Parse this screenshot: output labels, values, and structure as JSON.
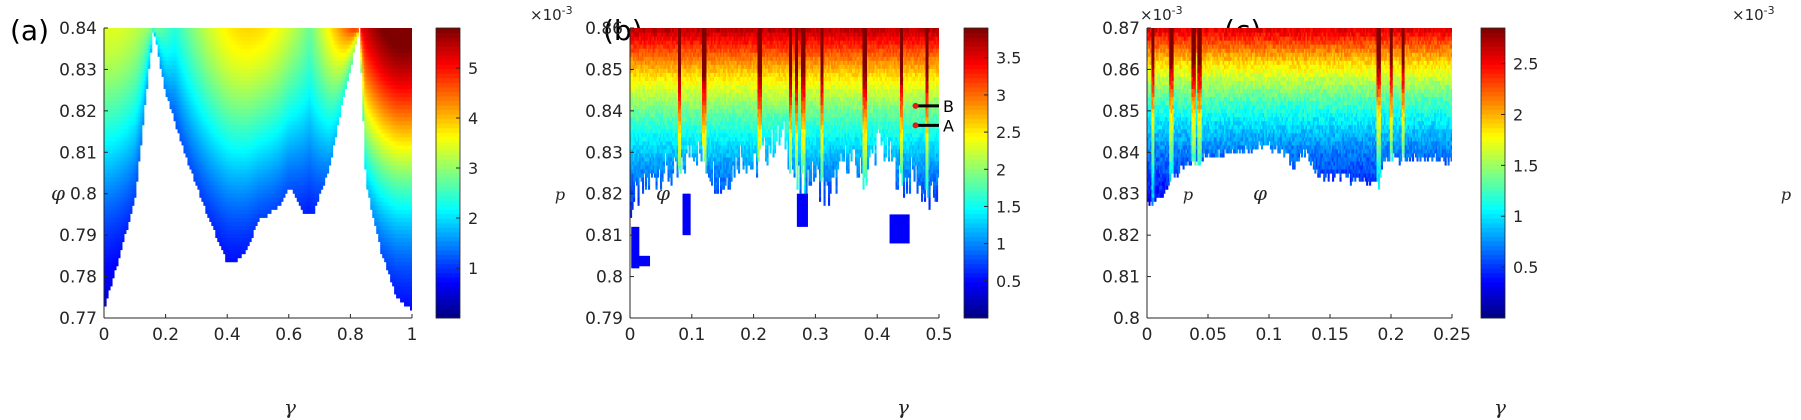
{
  "colors": {
    "axis": "#262626",
    "marker": "#e31a1c",
    "annotation_line": "#000000",
    "colormap": "jet"
  },
  "chart_data": [
    {
      "type": "heatmap",
      "panel_label": "(a)",
      "xlabel": "γ",
      "ylabel": "φ",
      "xlim": [
        0,
        1
      ],
      "ylim": [
        0.77,
        0.84
      ],
      "xticks": [
        "0",
        "0.2",
        "0.4",
        "0.6",
        "0.8",
        "1"
      ],
      "xtick_values": [
        0,
        0.2,
        0.4,
        0.6,
        0.8,
        1
      ],
      "yticks": [
        "0.77",
        "0.78",
        "0.79",
        "0.8",
        "0.81",
        "0.82",
        "0.83",
        "0.84"
      ],
      "ytick_values": [
        0.77,
        0.78,
        0.79,
        0.8,
        0.81,
        0.82,
        0.83,
        0.84
      ],
      "colorbar": {
        "label": "p",
        "multiplier": "×10",
        "exponent": "-3",
        "range": [
          0,
          5.8
        ],
        "ticks": [
          "1",
          "2",
          "3",
          "4",
          "5"
        ],
        "tick_values": [
          1,
          2,
          3,
          4,
          5
        ]
      },
      "boundary": [
        [
          0,
          0.7725
        ],
        [
          0.05,
          0.785
        ],
        [
          0.1,
          0.799
        ],
        [
          0.16,
          0.84
        ],
        [
          0.2,
          0.8245
        ],
        [
          0.27,
          0.808
        ],
        [
          0.33,
          0.796
        ],
        [
          0.38,
          0.787
        ],
        [
          0.4,
          0.7835
        ],
        [
          0.42,
          0.7835
        ],
        [
          0.46,
          0.786
        ],
        [
          0.5,
          0.7935
        ],
        [
          0.54,
          0.7955
        ],
        [
          0.57,
          0.7975
        ],
        [
          0.6,
          0.802
        ],
        [
          0.65,
          0.7955
        ],
        [
          0.68,
          0.7955
        ],
        [
          0.73,
          0.806
        ],
        [
          0.78,
          0.8245
        ],
        [
          0.83,
          0.84
        ],
        [
          0.85,
          0.8025
        ],
        [
          0.9,
          0.786
        ],
        [
          0.95,
          0.775
        ],
        [
          1,
          0.772
        ]
      ],
      "value_model": {
        "peaks": [
          [
            0.02,
            0.84,
            3.2
          ],
          [
            0.47,
            0.84,
            3.6
          ],
          [
            0.97,
            0.84,
            5.8
          ],
          [
            0.62,
            0.84,
            2.4
          ]
        ],
        "fringe": [
          0.1,
          0.85
        ]
      }
    },
    {
      "type": "heatmap",
      "panel_label": "(b)",
      "xlabel": "γ",
      "ylabel": "φ",
      "xlim": [
        0,
        0.5
      ],
      "ylim": [
        0.79,
        0.86
      ],
      "xticks": [
        "0",
        "0.1",
        "0.2",
        "0.3",
        "0.4",
        "0.5"
      ],
      "xtick_values": [
        0,
        0.1,
        0.2,
        0.3,
        0.4,
        0.5
      ],
      "yticks": [
        "0.79",
        "0.8",
        "0.81",
        "0.82",
        "0.83",
        "0.84",
        "0.85",
        "0.86"
      ],
      "ytick_values": [
        0.79,
        0.8,
        0.81,
        0.82,
        0.83,
        0.84,
        0.85,
        0.86
      ],
      "colorbar": {
        "label": "p",
        "multiplier": "×10",
        "exponent": "-3",
        "range": [
          0,
          3.9
        ],
        "ticks": [
          "0.5",
          "1",
          "1.5",
          "2",
          "2.5",
          "3",
          "3.5"
        ],
        "tick_values": [
          0.5,
          1,
          1.5,
          2,
          2.5,
          3,
          3.5
        ]
      },
      "points": [
        {
          "name": "A",
          "x": 0.462,
          "y": 0.8365
        },
        {
          "name": "B",
          "x": 0.462,
          "y": 0.8412
        }
      ],
      "boundary": [
        [
          0,
          0.817
        ],
        [
          0.02,
          0.821
        ],
        [
          0.05,
          0.826
        ],
        [
          0.08,
          0.824
        ],
        [
          0.1,
          0.832
        ],
        [
          0.12,
          0.828
        ],
        [
          0.15,
          0.822
        ],
        [
          0.18,
          0.83
        ],
        [
          0.2,
          0.826
        ],
        [
          0.22,
          0.831
        ],
        [
          0.25,
          0.834
        ],
        [
          0.27,
          0.822
        ],
        [
          0.3,
          0.825
        ],
        [
          0.32,
          0.819
        ],
        [
          0.35,
          0.829
        ],
        [
          0.38,
          0.824
        ],
        [
          0.4,
          0.833
        ],
        [
          0.42,
          0.829
        ],
        [
          0.44,
          0.822
        ],
        [
          0.46,
          0.825
        ],
        [
          0.48,
          0.818
        ],
        [
          0.5,
          0.821
        ]
      ],
      "islands": [
        [
          0.002,
          0.012,
          0.802,
          0.812
        ],
        [
          0.012,
          0.03,
          0.8025,
          0.805
        ],
        [
          0.085,
          0.095,
          0.81,
          0.82
        ],
        [
          0.27,
          0.285,
          0.812,
          0.82
        ],
        [
          0.42,
          0.45,
          0.808,
          0.815
        ]
      ],
      "value_model": {
        "base": 0.3,
        "scale": 3.4,
        "range": [
          0,
          3.9
        ],
        "streaks": [
          0.08,
          0.12,
          0.21,
          0.26,
          0.27,
          0.28,
          0.31,
          0.38,
          0.44,
          0.48
        ]
      }
    },
    {
      "type": "heatmap",
      "panel_label": "(c)",
      "xlabel": "γ",
      "ylabel": "φ",
      "xlim": [
        0,
        0.25
      ],
      "ylim": [
        0.8,
        0.87
      ],
      "xticks": [
        "0",
        "0.05",
        "0.1",
        "0.15",
        "0.2",
        "0.25"
      ],
      "xtick_values": [
        0,
        0.05,
        0.1,
        0.15,
        0.2,
        0.25
      ],
      "yticks": [
        "0.8",
        "0.81",
        "0.82",
        "0.83",
        "0.84",
        "0.85",
        "0.86",
        "0.87"
      ],
      "ytick_values": [
        0.8,
        0.81,
        0.82,
        0.83,
        0.84,
        0.85,
        0.86,
        0.87
      ],
      "colorbar": {
        "label": "p",
        "multiplier": "×10",
        "exponent": "-3",
        "range": [
          0,
          2.85
        ],
        "ticks": [
          "0.5",
          "1",
          "1.5",
          "2",
          "2.5"
        ],
        "tick_values": [
          0.5,
          1,
          1.5,
          2,
          2.5
        ]
      },
      "boundary": [
        [
          0,
          0.827
        ],
        [
          0.01,
          0.829
        ],
        [
          0.02,
          0.834
        ],
        [
          0.04,
          0.838
        ],
        [
          0.06,
          0.84
        ],
        [
          0.08,
          0.841
        ],
        [
          0.1,
          0.8415
        ],
        [
          0.11,
          0.8405
        ],
        [
          0.12,
          0.837
        ],
        [
          0.13,
          0.84
        ],
        [
          0.14,
          0.8345
        ],
        [
          0.16,
          0.834
        ],
        [
          0.18,
          0.833
        ],
        [
          0.19,
          0.8325
        ],
        [
          0.195,
          0.8385
        ],
        [
          0.21,
          0.8385
        ],
        [
          0.23,
          0.8385
        ],
        [
          0.246,
          0.838
        ]
      ],
      "value_model": {
        "base": 0.2,
        "scale": 2.4,
        "range": [
          0,
          2.85
        ],
        "streaks": [
          0.005,
          0.02,
          0.038,
          0.043,
          0.19,
          0.2,
          0.21
        ]
      }
    }
  ]
}
